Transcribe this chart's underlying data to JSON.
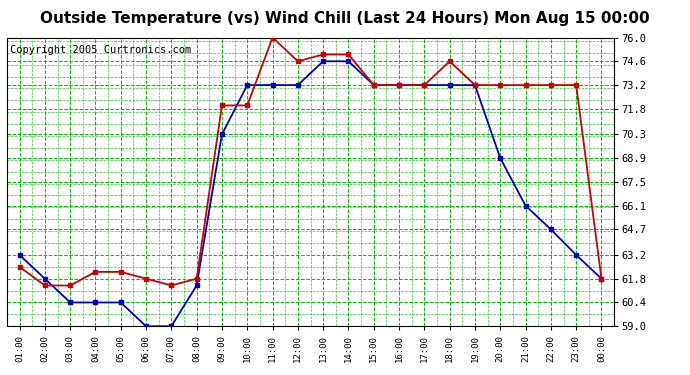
{
  "title": "Outside Temperature (vs) Wind Chill (Last 24 Hours) Mon Aug 15 00:00",
  "copyright": "Copyright 2005 Curtronics.com",
  "x_labels": [
    "01:00",
    "02:00",
    "03:00",
    "04:00",
    "05:00",
    "06:00",
    "07:00",
    "08:00",
    "09:00",
    "10:00",
    "11:00",
    "12:00",
    "13:00",
    "14:00",
    "15:00",
    "16:00",
    "17:00",
    "18:00",
    "19:00",
    "20:00",
    "21:00",
    "22:00",
    "23:00",
    "00:00"
  ],
  "y_ticks": [
    59.0,
    60.4,
    61.8,
    63.2,
    64.7,
    66.1,
    67.5,
    68.9,
    70.3,
    71.8,
    73.2,
    74.6,
    76.0
  ],
  "ylim": [
    59.0,
    76.0
  ],
  "temp_blue": [
    63.2,
    61.8,
    60.4,
    60.4,
    60.4,
    59.0,
    59.0,
    61.4,
    70.3,
    73.2,
    73.2,
    73.2,
    74.6,
    74.6,
    73.2,
    73.2,
    73.2,
    73.2,
    73.2,
    68.9,
    66.1,
    64.7,
    63.2,
    61.8
  ],
  "wind_red": [
    62.5,
    61.4,
    61.4,
    62.2,
    62.2,
    61.8,
    61.4,
    61.8,
    72.0,
    72.0,
    76.0,
    74.6,
    75.0,
    75.0,
    73.2,
    73.2,
    73.2,
    74.6,
    73.2,
    73.2,
    73.2,
    73.2,
    73.2,
    61.8
  ],
  "blue_color": "#0000bb",
  "red_color": "#cc0000",
  "bg_color": "#ffffff",
  "plot_bg": "#ffffff",
  "grid_major_color": "#00bb00",
  "grid_minor_color": "#00bb00",
  "title_fontsize": 11,
  "copyright_fontsize": 7.5,
  "marker_size": 3.0
}
